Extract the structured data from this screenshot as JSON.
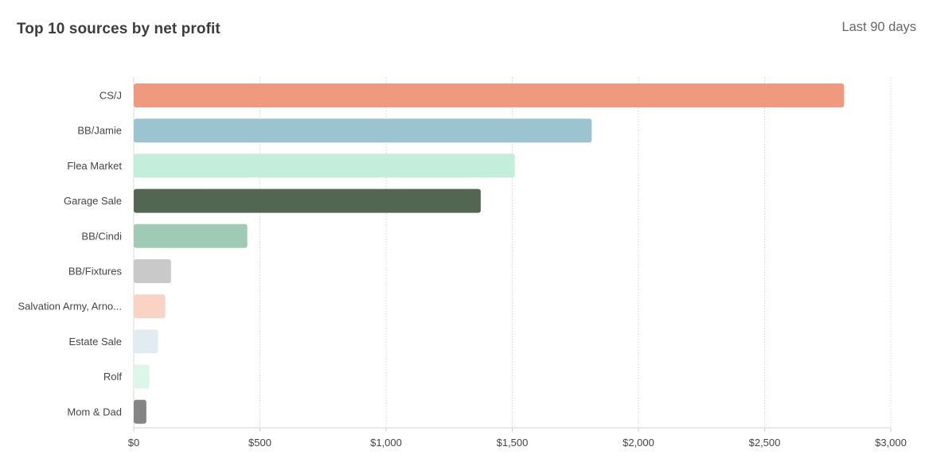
{
  "header": {
    "title": "Top 10 sources by net profit",
    "range": "Last 90 days"
  },
  "chart_data": {
    "type": "bar",
    "orientation": "horizontal",
    "title": "Top 10 sources by net profit",
    "xlabel": "",
    "ylabel": "",
    "xlim": [
      0,
      3000
    ],
    "ticks": [
      0,
      500,
      1000,
      1500,
      2000,
      2500,
      3000
    ],
    "tick_labels": [
      "$0",
      "$500",
      "$1,000",
      "$1,500",
      "$2,000",
      "$2,500",
      "$3,000"
    ],
    "grid": "vertical dotted",
    "categories": [
      "CS/J",
      "BB/Jamie",
      "Flea Market",
      "Garage Sale",
      "BB/Cindi",
      "BB/Fixtures",
      "Salvation Army, Arno...",
      "Estate Sale",
      "Rolf",
      "Mom & Dad"
    ],
    "values": [
      2815,
      1815,
      1510,
      1375,
      450,
      148,
      125,
      97,
      62,
      50
    ],
    "colors": [
      "#f0997e",
      "#9bc4d0",
      "#c3eedb",
      "#526651",
      "#9fcab5",
      "#c9c9c9",
      "#f9d3c4",
      "#e1ecf2",
      "#dcf6e9",
      "#858585"
    ]
  }
}
